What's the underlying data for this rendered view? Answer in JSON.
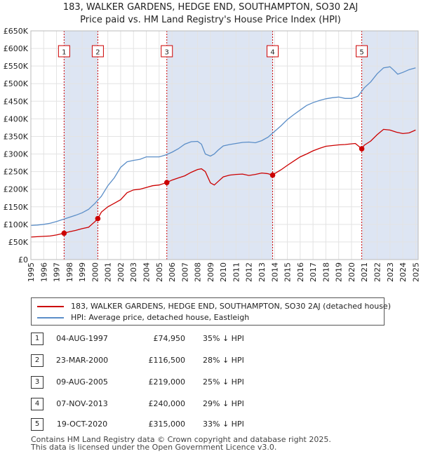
{
  "title": "183, WALKER GARDENS, HEDGE END, SOUTHAMPTON, SO30 2AJ",
  "subtitle": "Price paid vs. HM Land Registry's House Price Index (HPI)",
  "colors": {
    "price": "#cc0000",
    "hpi": "#5b8ec8",
    "band": "#dde5f3",
    "marker_line": "#cc0000"
  },
  "chart_data": {
    "type": "line",
    "xlim": [
      1995,
      2025.2
    ],
    "ylim": [
      0,
      650000
    ],
    "yticks": [
      0,
      50000,
      100000,
      150000,
      200000,
      250000,
      300000,
      350000,
      400000,
      450000,
      500000,
      550000,
      600000,
      650000
    ],
    "ytick_labels": [
      "£0",
      "£50K",
      "£100K",
      "£150K",
      "£200K",
      "£250K",
      "£300K",
      "£350K",
      "£400K",
      "£450K",
      "£500K",
      "£550K",
      "£600K",
      "£650K"
    ],
    "xticks": [
      "1995",
      "1996",
      "1997",
      "1998",
      "1999",
      "2000",
      "2001",
      "2002",
      "2003",
      "2004",
      "2005",
      "2006",
      "2007",
      "2008",
      "2009",
      "2010",
      "2011",
      "2012",
      "2013",
      "2014",
      "2015",
      "2016",
      "2017",
      "2018",
      "2019",
      "2020",
      "2021",
      "2022",
      "2023",
      "2024",
      "2025"
    ],
    "series": [
      {
        "name": "183, WALKER GARDENS, HEDGE END, SOUTHAMPTON, SO30 2AJ (detached house)",
        "x": [
          1995,
          1995.5,
          1996,
          1996.5,
          1997,
          1997.59,
          1998,
          1998.5,
          1999,
          1999.5,
          2000,
          2000.22,
          2000.5,
          2001,
          2001.5,
          2002,
          2002.5,
          2003,
          2003.5,
          2004,
          2004.5,
          2005,
          2005.6,
          2006,
          2006.5,
          2007,
          2007.5,
          2008,
          2008.3,
          2008.6,
          2009,
          2009.3,
          2009.6,
          2010,
          2010.5,
          2011,
          2011.5,
          2012,
          2012.5,
          2013,
          2013.5,
          2013.85,
          2014,
          2014.5,
          2015,
          2015.5,
          2016,
          2016.5,
          2017,
          2017.5,
          2018,
          2018.5,
          2019,
          2019.5,
          2020,
          2020.3,
          2020.8,
          2021,
          2021.5,
          2022,
          2022.5,
          2023,
          2023.5,
          2024,
          2024.5,
          2025
        ],
        "y": [
          64000,
          65000,
          66000,
          67000,
          70000,
          74950,
          79000,
          83000,
          88000,
          92000,
          108000,
          116500,
          135000,
          150000,
          160000,
          170000,
          190000,
          198000,
          200000,
          205000,
          210000,
          212000,
          219000,
          226000,
          232000,
          238000,
          248000,
          256000,
          258000,
          250000,
          218000,
          212000,
          222000,
          235000,
          240000,
          242000,
          243000,
          239000,
          242000,
          246000,
          244000,
          240000,
          244000,
          255000,
          268000,
          280000,
          292000,
          300000,
          309000,
          316000,
          322000,
          324000,
          326000,
          327000,
          329000,
          330000,
          315000,
          325000,
          337000,
          355000,
          370000,
          368000,
          362000,
          358000,
          360000,
          368000
        ]
      },
      {
        "name": "HPI: Average price, detached house, Eastleigh",
        "x": [
          1995,
          1995.5,
          1996,
          1996.5,
          1997,
          1997.5,
          1998,
          1998.5,
          1999,
          1999.5,
          2000,
          2000.5,
          2001,
          2001.5,
          2002,
          2002.5,
          2003,
          2003.5,
          2004,
          2004.5,
          2005,
          2005.5,
          2006,
          2006.5,
          2007,
          2007.5,
          2008,
          2008.3,
          2008.6,
          2009,
          2009.3,
          2009.6,
          2010,
          2010.5,
          2011,
          2011.5,
          2012,
          2012.5,
          2013,
          2013.5,
          2014,
          2014.5,
          2015,
          2015.5,
          2016,
          2016.5,
          2017,
          2017.5,
          2018,
          2018.5,
          2019,
          2019.5,
          2020,
          2020.5,
          2021,
          2021.5,
          2022,
          2022.5,
          2023,
          2023.3,
          2023.6,
          2024,
          2024.5,
          2025
        ],
        "y": [
          97000,
          98000,
          100000,
          103000,
          108000,
          114000,
          120000,
          126000,
          133000,
          143000,
          160000,
          180000,
          210000,
          232000,
          262000,
          278000,
          282000,
          285000,
          292000,
          292000,
          292000,
          297000,
          305000,
          315000,
          328000,
          335000,
          336000,
          328000,
          300000,
          294000,
          300000,
          311000,
          323000,
          327000,
          330000,
          333000,
          334000,
          332000,
          338000,
          348000,
          364000,
          380000,
          398000,
          412000,
          425000,
          438000,
          446000,
          452000,
          457000,
          460000,
          462000,
          458000,
          458000,
          464000,
          488000,
          505000,
          528000,
          545000,
          548000,
          538000,
          527000,
          532000,
          540000,
          545000
        ]
      }
    ],
    "sales": [
      {
        "id": "1",
        "x": 1997.59,
        "price": 74950
      },
      {
        "id": "2",
        "x": 2000.22,
        "price": 116500
      },
      {
        "id": "3",
        "x": 2005.6,
        "price": 219000
      },
      {
        "id": "4",
        "x": 2013.85,
        "price": 240000
      },
      {
        "id": "5",
        "x": 2020.8,
        "price": 315000
      }
    ]
  },
  "legend": {
    "price_label": "183, WALKER GARDENS, HEDGE END, SOUTHAMPTON, SO30 2AJ (detached house)",
    "hpi_label": "HPI: Average price, detached house, Eastleigh"
  },
  "sales_table": [
    {
      "num": "1",
      "date": "04-AUG-1997",
      "price": "£74,950",
      "hpi": "35% ↓ HPI"
    },
    {
      "num": "2",
      "date": "23-MAR-2000",
      "price": "£116,500",
      "hpi": "28% ↓ HPI"
    },
    {
      "num": "3",
      "date": "09-AUG-2005",
      "price": "£219,000",
      "hpi": "25% ↓ HPI"
    },
    {
      "num": "4",
      "date": "07-NOV-2013",
      "price": "£240,000",
      "hpi": "29% ↓ HPI"
    },
    {
      "num": "5",
      "date": "19-OCT-2020",
      "price": "£315,000",
      "hpi": "33% ↓ HPI"
    }
  ],
  "footer": {
    "line1": "Contains HM Land Registry data © Crown copyright and database right 2025.",
    "line2": "This data is licensed under the Open Government Licence v3.0."
  }
}
